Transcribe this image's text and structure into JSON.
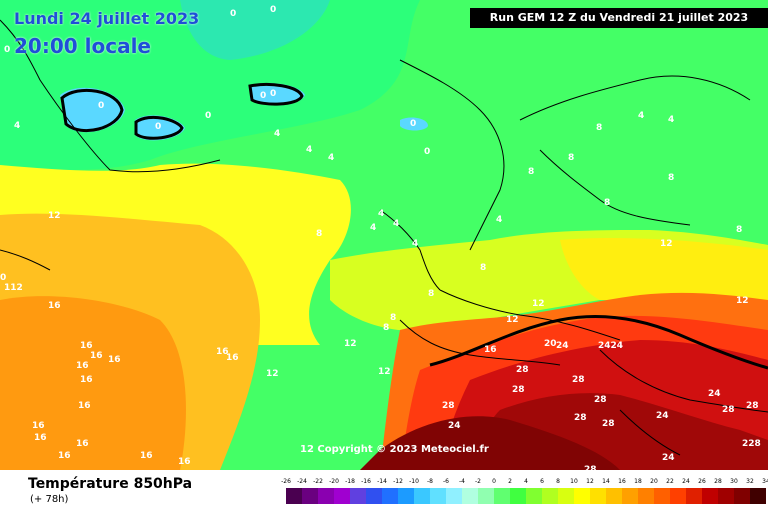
{
  "title": {
    "date": "Lundi 24 juillet 2023",
    "local_time": "20:00 locale"
  },
  "run_banner": "Run GEM 12 Z du Vendredi 21 juillet 2023",
  "copyright": "12 Copyright © 2023 Meteociel.fr",
  "parameter": {
    "name": "Température 850hPa",
    "lead_time": "(+ 78h)"
  },
  "legend": {
    "ticks": [
      "-26",
      "-24",
      "-22",
      "-20",
      "-18",
      "-16",
      "-14",
      "-12",
      "-10",
      "-8",
      "-6",
      "-4",
      "-2",
      "0",
      "2",
      "4",
      "6",
      "8",
      "10",
      "12",
      "14",
      "16",
      "18",
      "20",
      "22",
      "24",
      "26",
      "28",
      "30",
      "32",
      "34"
    ],
    "colors": [
      "#4a0050",
      "#6a0080",
      "#8a00b0",
      "#a000d0",
      "#6040e0",
      "#3050f0",
      "#2070ff",
      "#1c9bff",
      "#3ac8ff",
      "#60e0ff",
      "#90f0ff",
      "#b0ffe0",
      "#90ffb0",
      "#60ff70",
      "#40ff40",
      "#80ff30",
      "#b0ff20",
      "#d8ff10",
      "#ffff00",
      "#ffe000",
      "#ffc000",
      "#ffa000",
      "#ff8000",
      "#ff6000",
      "#ff4000",
      "#e02000",
      "#c00000",
      "#a00000",
      "#800000",
      "#400000"
    ]
  },
  "contour_labels": [
    {
      "id": "0-a",
      "text": "0"
    },
    {
      "id": "0-b",
      "text": "0"
    },
    {
      "id": "0-c",
      "text": "0"
    },
    {
      "id": "0-d",
      "text": "0"
    },
    {
      "id": "0-e",
      "text": "0"
    },
    {
      "id": "0-f",
      "text": "0"
    },
    {
      "id": "0-g",
      "text": "0"
    },
    {
      "id": "0-h",
      "text": "0"
    },
    {
      "id": "0-i",
      "text": "0"
    },
    {
      "id": "0-j",
      "text": "0"
    },
    {
      "id": "0-k",
      "text": "0"
    },
    {
      "id": "4-a",
      "text": "4"
    },
    {
      "id": "4-b",
      "text": "4"
    },
    {
      "id": "4-c",
      "text": "4"
    },
    {
      "id": "4-d",
      "text": "4"
    },
    {
      "id": "4-e",
      "text": "4"
    },
    {
      "id": "4-f",
      "text": "4"
    },
    {
      "id": "4-g",
      "text": "4"
    },
    {
      "id": "4-h",
      "text": "4"
    },
    {
      "id": "4-i",
      "text": "4"
    },
    {
      "id": "4-j",
      "text": "4"
    },
    {
      "id": "4-k",
      "text": "4"
    },
    {
      "id": "8-a",
      "text": "8"
    },
    {
      "id": "8-b",
      "text": "8"
    },
    {
      "id": "8-c",
      "text": "8"
    },
    {
      "id": "8-d",
      "text": "8"
    },
    {
      "id": "8-e",
      "text": "8"
    },
    {
      "id": "8-f",
      "text": "8"
    },
    {
      "id": "8-g",
      "text": "8"
    },
    {
      "id": "8-h",
      "text": "8"
    },
    {
      "id": "8-i",
      "text": "8"
    },
    {
      "id": "8-j",
      "text": "8"
    },
    {
      "id": "8-k",
      "text": "8"
    },
    {
      "id": "12-a",
      "text": "12"
    },
    {
      "id": "12-b",
      "text": "12"
    },
    {
      "id": "12-c",
      "text": "12"
    },
    {
      "id": "12-d",
      "text": "12"
    },
    {
      "id": "12-e",
      "text": "12"
    },
    {
      "id": "12-f",
      "text": "12"
    },
    {
      "id": "12-g",
      "text": "12"
    },
    {
      "id": "12-h",
      "text": "12"
    },
    {
      "id": "16-a",
      "text": "16"
    },
    {
      "id": "16-b",
      "text": "16"
    },
    {
      "id": "16-c",
      "text": "16"
    },
    {
      "id": "16-d",
      "text": "16"
    },
    {
      "id": "16-e",
      "text": "16"
    },
    {
      "id": "16-f",
      "text": "16"
    },
    {
      "id": "16-g",
      "text": "16"
    },
    {
      "id": "16-h",
      "text": "16"
    },
    {
      "id": "16-i",
      "text": "16"
    },
    {
      "id": "16-j",
      "text": "16"
    },
    {
      "id": "16-k",
      "text": "16"
    },
    {
      "id": "16-l",
      "text": "16"
    },
    {
      "id": "16-m",
      "text": "16"
    },
    {
      "id": "16-n",
      "text": "16"
    },
    {
      "id": "16-o",
      "text": "16"
    },
    {
      "id": "16-p",
      "text": "16"
    },
    {
      "id": "20-a",
      "text": "20"
    },
    {
      "id": "24-a",
      "text": "24"
    },
    {
      "id": "24-b",
      "text": "2424"
    },
    {
      "id": "24-c",
      "text": "24"
    },
    {
      "id": "24-d",
      "text": "24"
    },
    {
      "id": "24-e",
      "text": "24"
    },
    {
      "id": "24-f",
      "text": "24"
    },
    {
      "id": "28-a",
      "text": "28"
    },
    {
      "id": "28-b",
      "text": "28"
    },
    {
      "id": "28-c",
      "text": "28"
    },
    {
      "id": "28-d",
      "text": "28"
    },
    {
      "id": "28-e",
      "text": "28"
    },
    {
      "id": "28-f",
      "text": "28"
    },
    {
      "id": "28-g",
      "text": "28"
    },
    {
      "id": "28-h",
      "text": "28"
    },
    {
      "id": "28-i",
      "text": "28"
    },
    {
      "id": "28-j",
      "text": "28"
    },
    {
      "id": "228",
      "text": "228"
    },
    {
      "id": "112",
      "text": "112"
    }
  ]
}
